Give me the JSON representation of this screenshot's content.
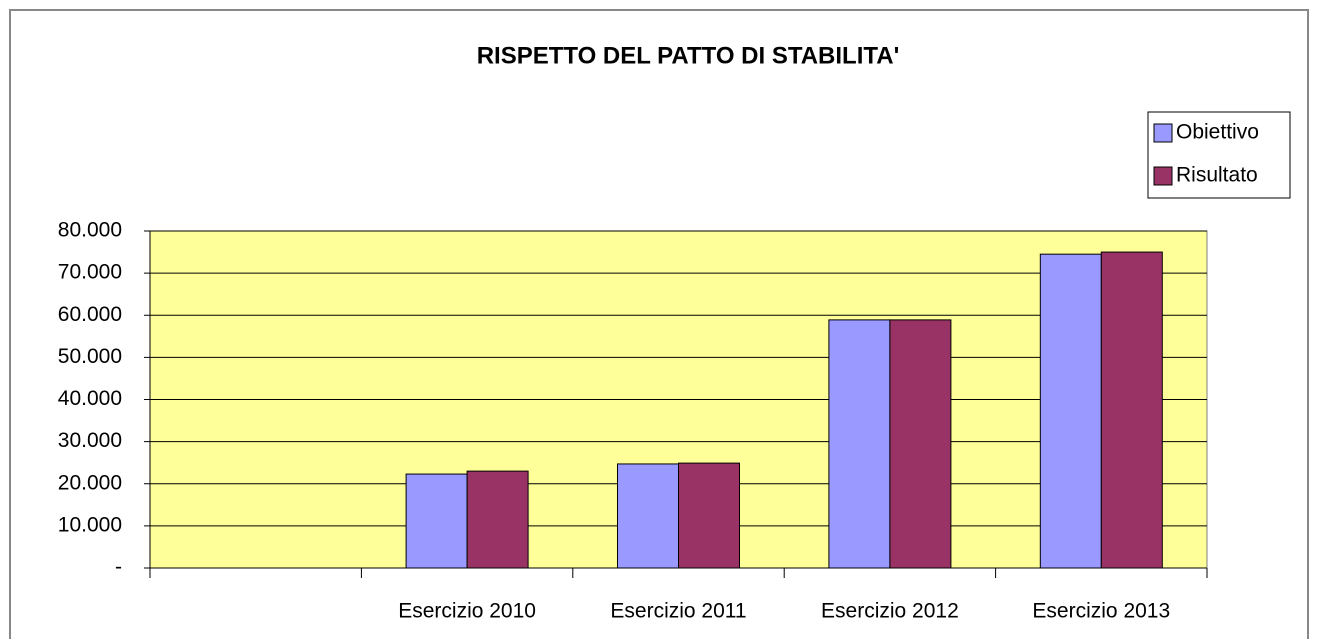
{
  "chart_data": {
    "type": "bar",
    "title": "RISPETTO DEL PATTO DI STABILITA'",
    "categories": [
      null,
      "Esercizio 2010",
      "Esercizio 2011",
      "Esercizio 2012",
      "Esercizio 2013"
    ],
    "series": [
      {
        "name": "Obiettivo",
        "color": "#9999ff",
        "values": [
          null,
          22300,
          24700,
          58900,
          74500
        ]
      },
      {
        "name": "Risultato",
        "color": "#993366",
        "values": [
          null,
          23000,
          24900,
          58900,
          75000
        ]
      }
    ],
    "ylim": [
      0,
      80000
    ],
    "yticks": [
      {
        "value": 0,
        "label": "-"
      },
      {
        "value": 10000,
        "label": "10.000"
      },
      {
        "value": 20000,
        "label": "20.000"
      },
      {
        "value": 30000,
        "label": "30.000"
      },
      {
        "value": 40000,
        "label": "40.000"
      },
      {
        "value": 50000,
        "label": "50.000"
      },
      {
        "value": 60000,
        "label": "60.000"
      },
      {
        "value": 70000,
        "label": "70.000"
      },
      {
        "value": 80000,
        "label": "80.000"
      }
    ],
    "grid": true,
    "plot_background": "#ffff99",
    "legend": "upper right"
  }
}
